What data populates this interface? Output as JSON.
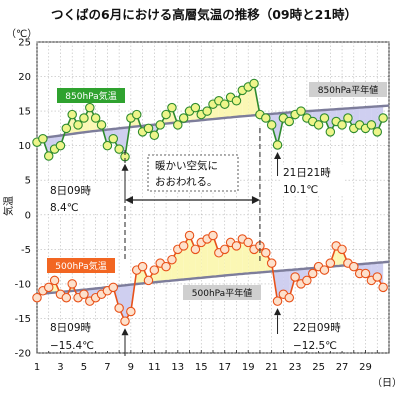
{
  "chart_data": {
    "type": "line",
    "title": "つくばの6月における高層気温の推移（09時と21時）",
    "y_unit": "（℃）",
    "y_label": "気温",
    "x_unit": "（日）",
    "ylim": [
      -20,
      25
    ],
    "y_ticks": [
      25,
      20,
      15,
      10,
      5,
      0,
      -5,
      -10,
      -15,
      -20
    ],
    "y_tick_labels": [
      "25",
      "20",
      "15",
      "10",
      "5",
      "0",
      "-5",
      "-10",
      "-15",
      "-20"
    ],
    "xlim": [
      1,
      31
    ],
    "x_ticks": [
      1,
      3,
      5,
      7,
      9,
      11,
      13,
      15,
      17,
      19,
      21,
      23,
      25,
      27,
      29
    ],
    "x_tick_labels": [
      "1",
      "3",
      "5",
      "7",
      "9",
      "11",
      "13",
      "15",
      "17",
      "19",
      "21",
      "23",
      "25",
      "27",
      "29"
    ],
    "grid": true,
    "series": [
      {
        "name": "850hPa気温",
        "color": "#2e8b2e",
        "marker_fill": "#eef58a",
        "x": [
          1,
          1.5,
          2,
          2.5,
          3,
          3.5,
          4,
          4.5,
          5,
          5.5,
          6,
          6.5,
          7,
          7.5,
          8,
          8.5,
          9,
          9.5,
          10,
          10.5,
          11,
          11.5,
          12,
          12.5,
          13,
          13.5,
          14,
          14.5,
          15,
          15.5,
          16,
          16.5,
          17,
          17.5,
          18,
          18.5,
          19,
          19.5,
          20,
          20.5,
          21,
          21.5,
          22,
          22.5,
          23,
          23.5,
          24,
          24.5,
          25,
          25.5,
          26,
          26.5,
          27,
          27.5,
          28,
          28.5,
          29,
          29.5,
          30,
          30.5
        ],
        "values": [
          10.5,
          11.0,
          8.5,
          9.5,
          10.0,
          12.5,
          14.5,
          13.0,
          14.0,
          15.5,
          14.0,
          13.0,
          10.0,
          11.0,
          9.5,
          8.4,
          14.0,
          14.5,
          12.0,
          12.5,
          11.5,
          13.0,
          14.5,
          15.5,
          13.0,
          14.0,
          15.0,
          15.5,
          14.5,
          15.0,
          16.0,
          16.5,
          16.0,
          17.0,
          16.5,
          18.0,
          18.5,
          19.0,
          14.5,
          14.0,
          13.0,
          10.1,
          14.0,
          13.5,
          14.5,
          15.0,
          14.0,
          13.5,
          13.0,
          14.0,
          12.0,
          13.5,
          13.0,
          14.0,
          12.5,
          13.0,
          12.5,
          13.0,
          12.0,
          14.0
        ]
      },
      {
        "name": "500hPa気温",
        "color": "#e8521a",
        "marker_fill": "#fde1cc",
        "x": [
          1,
          1.5,
          2,
          2.5,
          3,
          3.5,
          4,
          4.5,
          5,
          5.5,
          6,
          6.5,
          7,
          7.5,
          8,
          8.5,
          9,
          9.5,
          10,
          10.5,
          11,
          11.5,
          12,
          12.5,
          13,
          13.5,
          14,
          14.5,
          15,
          15.5,
          16,
          16.5,
          17,
          17.5,
          18,
          18.5,
          19,
          19.5,
          20,
          20.5,
          21,
          21.5,
          22,
          22.5,
          23,
          23.5,
          24,
          24.5,
          25,
          25.5,
          26,
          26.5,
          27,
          27.5,
          28,
          28.5,
          29,
          29.5,
          30,
          30.5
        ],
        "values": [
          -12.0,
          -11.0,
          -10.5,
          -9.5,
          -11.5,
          -12.0,
          -10.0,
          -12.0,
          -11.5,
          -12.5,
          -12.0,
          -11.5,
          -11.0,
          -10.5,
          -13.5,
          -15.4,
          -14.0,
          -8.0,
          -7.5,
          -9.5,
          -8.0,
          -7.0,
          -7.5,
          -6.5,
          -5.0,
          -4.5,
          -3.0,
          -5.0,
          -4.0,
          -3.5,
          -3.0,
          -5.5,
          -5.0,
          -4.0,
          -4.5,
          -3.5,
          -4.0,
          -5.0,
          -4.5,
          -5.5,
          -7.0,
          -12.5,
          -11.5,
          -12.0,
          -9.0,
          -10.0,
          -9.5,
          -8.5,
          -7.5,
          -8.0,
          -7.0,
          -4.5,
          -5.0,
          -7.0,
          -7.5,
          -8.5,
          -8.5,
          -9.5,
          -9.0,
          -10.5
        ]
      }
    ],
    "normals": [
      {
        "name": "850hPa平年値",
        "values": [
          11.0,
          12.0,
          12.8,
          13.5,
          14.2,
          14.8,
          15.3,
          15.8
        ]
      },
      {
        "name": "500hPa平年値",
        "values": [
          -11.5,
          -10.8,
          -10.0,
          -9.3,
          -8.6,
          -8.0,
          -7.4,
          -6.8
        ]
      }
    ],
    "annotations": [
      {
        "id": "warm-air",
        "text_lines": [
          "暖かい空気に",
          "おおわれる。"
        ]
      },
      {
        "id": "850-min-8",
        "text_lines": [
          "8日09時",
          "8.4℃"
        ]
      },
      {
        "id": "850-min-21",
        "text_lines": [
          "21日21時",
          "10.1℃"
        ]
      },
      {
        "id": "500-min-8",
        "text_lines": [
          "8日09時",
          "−15.4℃"
        ]
      },
      {
        "id": "500-min-22",
        "text_lines": [
          "22日09時",
          "−12.5℃"
        ]
      }
    ],
    "legend": [
      {
        "label": "850hPa気温",
        "color": "#2fa22f"
      },
      {
        "label": "500hPa気温",
        "color": "#f26622"
      }
    ]
  }
}
